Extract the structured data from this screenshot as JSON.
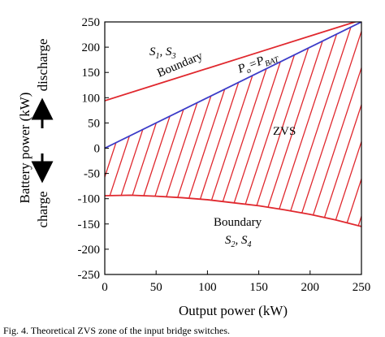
{
  "chart_data": {
    "type": "line",
    "xlabel": "Output power (kW)",
    "ylabel": "Battery power (kW)",
    "side_labels": {
      "top": "discharge",
      "bottom": "charge"
    },
    "xlim": [
      0,
      250
    ],
    "ylim": [
      -250,
      250
    ],
    "x_ticks": [
      0,
      50,
      100,
      150,
      200,
      250
    ],
    "y_ticks": [
      250,
      200,
      150,
      100,
      50,
      0,
      -50,
      -100,
      -150,
      -200,
      -250
    ],
    "grid": false,
    "series": [
      {
        "color": "#e0282e",
        "x": [
          0,
          50,
          100,
          150,
          200,
          250
        ],
        "y": [
          94,
          126,
          158,
          190,
          222,
          254
        ]
      },
      {
        "color": "#3c3cc8",
        "x": [
          0,
          250
        ],
        "y": [
          0,
          250
        ]
      },
      {
        "color": "#e0282e",
        "x": [
          0,
          25,
          50,
          75,
          100,
          125,
          150,
          175,
          200,
          225,
          250
        ],
        "y": [
          -94,
          -93,
          -95,
          -98,
          -102,
          -108,
          -114,
          -122,
          -131,
          -142,
          -155
        ]
      }
    ],
    "annotations": [
      {
        "text": "S1, S3",
        "x": 40,
        "y": 197
      },
      {
        "text": "Boundary",
        "x": 95,
        "y": 158
      },
      {
        "text": "Po=PBAT",
        "x": 135,
        "y": 142
      },
      {
        "text": "ZVS",
        "x": 178,
        "y": 17
      },
      {
        "text": "Boundary",
        "x": 170,
        "y": -127
      },
      {
        "text": "S2, S4",
        "x": 170,
        "y": -165
      }
    ],
    "hatched_region": {
      "label": "ZVS",
      "between": [
        "Po=PBAT",
        "lower boundary"
      ],
      "hatch_color": "#e0282e"
    }
  },
  "text": {
    "label_s13_s": "S",
    "label_s13_sub1": "1",
    "label_s13_mid": ", S",
    "label_s13_sub2": "3",
    "boundary_upper": "Boundary",
    "eq_p": "P",
    "eq_o": "o",
    "eq_eq": "=P",
    "eq_bat": "BAT",
    "zvs": "ZVS",
    "boundary_lower": "Boundary",
    "label_s24_s": "S",
    "label_s24_sub1": "2",
    "label_s24_mid": ", S",
    "label_s24_sub2": "4",
    "caption": "Fig. 4. Theoretical ZVS zone of the input bridge switches."
  },
  "colors": {
    "boundary": "#e0282e",
    "po_line": "#3c3cc8",
    "axis": "#000000"
  }
}
